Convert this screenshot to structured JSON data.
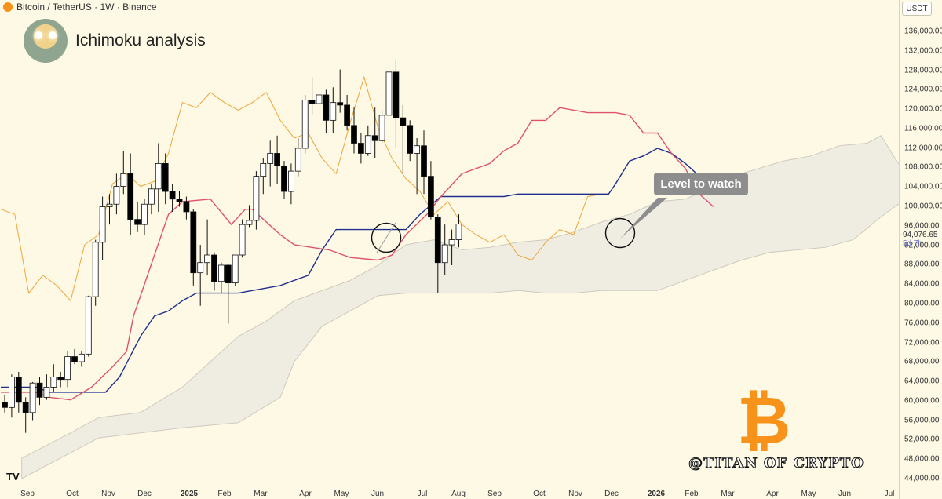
{
  "header": {
    "symbol": "Bitcoin / TetherUS · 1W · Binance"
  },
  "title": "Ichimoku analysis",
  "currency": "USDT",
  "last_price": "94,076.65",
  "countdown": "5d 7h",
  "callout": "Level to watch",
  "watermark": "@TITAN OF CRYPTO",
  "tv_logo": "TV",
  "btc_symbol": "₿",
  "colors": {
    "background": "#fdf9e5",
    "up": "#ffffff",
    "down": "#000000",
    "tenkan": "#e0516a",
    "kijun": "#1f2f8f",
    "chikou": "#f0a43a",
    "cloud": "#efece2",
    "btc": "#f7931a"
  },
  "chart_data": {
    "type": "candlestick",
    "timeframe": "1W",
    "ylim": [
      44000,
      136000
    ],
    "y_ticks": [
      "136,000.00",
      "132,000.00",
      "128,000.00",
      "124,000.00",
      "120,000.00",
      "116,000.00",
      "112,000.00",
      "108,000.00",
      "104,000.00",
      "100,000.00",
      "96,000.00",
      "92,000.00",
      "88,000.00",
      "84,000.00",
      "80,000.00",
      "76,000.00",
      "72,000.00",
      "68,000.00",
      "64,000.00",
      "60,000.00",
      "56,000.00",
      "52,000.00",
      "48,000.00",
      "44,000.00"
    ],
    "x_labels": [
      "Sep",
      "Oct",
      "Nov",
      "Dec",
      "2025",
      "Feb",
      "Mar",
      "Apr",
      "May",
      "Jun",
      "Jul",
      "Aug",
      "Sep",
      "Oct",
      "Nov",
      "Dec",
      "2026",
      "Feb",
      "Mar",
      "Apr",
      "May",
      "Jun",
      "Jul"
    ],
    "candles_ohlc": [
      [
        59000,
        60500,
        57000,
        58000
      ],
      [
        58000,
        64500,
        56000,
        64000
      ],
      [
        64000,
        65000,
        57000,
        59000
      ],
      [
        59000,
        60000,
        53000,
        57000
      ],
      [
        57000,
        63000,
        55500,
        62800
      ],
      [
        62800,
        64000,
        58500,
        60000
      ],
      [
        60000,
        64500,
        59500,
        62000
      ],
      [
        62000,
        66500,
        61000,
        64000
      ],
      [
        64000,
        65000,
        62000,
        63500
      ],
      [
        63500,
        69000,
        62000,
        68000
      ],
      [
        68000,
        69500,
        66500,
        67000
      ],
      [
        67000,
        69000,
        66000,
        68500
      ],
      [
        68500,
        80000,
        68000,
        79800
      ],
      [
        79800,
        91000,
        78000,
        90500
      ],
      [
        90500,
        99500,
        87000,
        97500
      ],
      [
        97500,
        100000,
        94000,
        98000
      ],
      [
        98000,
        104000,
        96000,
        101500
      ],
      [
        101500,
        108500,
        100000,
        104000
      ],
      [
        104000,
        108000,
        92000,
        95000
      ],
      [
        95000,
        98500,
        92500,
        94000
      ],
      [
        94000,
        99000,
        92000,
        98000
      ],
      [
        98000,
        102000,
        96000,
        101000
      ],
      [
        101000,
        110000,
        96500,
        106000
      ],
      [
        106000,
        108000,
        98000,
        100500
      ],
      [
        100500,
        102000,
        96500,
        99000
      ],
      [
        99000,
        100500,
        97500,
        98500
      ],
      [
        98500,
        99500,
        95000,
        96500
      ],
      [
        96500,
        97000,
        82000,
        84500
      ],
      [
        84500,
        90000,
        78000,
        86500
      ],
      [
        86500,
        95000,
        84000,
        88000
      ],
      [
        88000,
        88500,
        81000,
        82800
      ],
      [
        82800,
        86500,
        80500,
        86000
      ],
      [
        86000,
        86200,
        74500,
        82500
      ],
      [
        82500,
        87000,
        82000,
        88000
      ],
      [
        88000,
        95000,
        87500,
        94000
      ],
      [
        94000,
        97800,
        93500,
        94800
      ],
      [
        94800,
        104500,
        93000,
        103500
      ],
      [
        103500,
        107000,
        100000,
        106000
      ],
      [
        106000,
        110500,
        101500,
        108000
      ],
      [
        108000,
        111500,
        102000,
        105500
      ],
      [
        105500,
        106500,
        99000,
        100500
      ],
      [
        100500,
        106000,
        98000,
        104500
      ],
      [
        104500,
        111000,
        103500,
        109000
      ],
      [
        109000,
        119500,
        108000,
        118500
      ],
      [
        118500,
        123000,
        115500,
        117800
      ],
      [
        117800,
        122500,
        113500,
        119500
      ],
      [
        119500,
        120500,
        112000,
        114500
      ],
      [
        114500,
        121000,
        112000,
        118000
      ],
      [
        118000,
        124500,
        116000,
        117500
      ],
      [
        117500,
        119500,
        112500,
        113500
      ],
      [
        113500,
        117000,
        108000,
        110000
      ],
      [
        110000,
        112000,
        106000,
        108000
      ],
      [
        108000,
        113500,
        107500,
        111500
      ],
      [
        111500,
        117000,
        107000,
        110500
      ],
      [
        110500,
        116500,
        110000,
        115500
      ],
      [
        115500,
        126000,
        114000,
        124000
      ],
      [
        124000,
        126500,
        109000,
        115000
      ],
      [
        115000,
        117500,
        104000,
        113500
      ],
      [
        113500,
        114500,
        106500,
        108000
      ],
      [
        108000,
        111000,
        100000,
        109500
      ],
      [
        109500,
        112500,
        100000,
        103500
      ],
      [
        103500,
        106500,
        95000,
        95500
      ],
      [
        95500,
        96000,
        80500,
        86500
      ],
      [
        86500,
        94000,
        84000,
        90000
      ],
      [
        90000,
        93000,
        86000,
        91000
      ],
      [
        91000,
        96000,
        89500,
        94076.65
      ]
    ],
    "series": [
      {
        "name": "Tenkan",
        "values": [
          [
            0,
            61000
          ],
          [
            5,
            61000
          ],
          [
            7,
            60000
          ],
          [
            10,
            59500
          ],
          [
            13,
            62000
          ],
          [
            16,
            66000
          ],
          [
            18,
            69000
          ],
          [
            19,
            76000
          ],
          [
            22,
            88000
          ],
          [
            24,
            96000
          ],
          [
            26,
            98500
          ],
          [
            30,
            99000
          ],
          [
            33,
            94000
          ],
          [
            35,
            97000
          ],
          [
            36,
            97000
          ],
          [
            40,
            92000
          ],
          [
            42,
            90000
          ],
          [
            47,
            89000
          ],
          [
            50,
            87500
          ],
          [
            54,
            87000
          ],
          [
            56,
            88000
          ],
          [
            58,
            92000
          ],
          [
            61,
            96000
          ],
          [
            63,
            99500
          ],
          [
            66,
            104000
          ],
          [
            70,
            106000
          ],
          [
            72,
            108500
          ],
          [
            74,
            110000
          ],
          [
            76,
            114500
          ],
          [
            78,
            114500
          ],
          [
            80,
            117000
          ],
          [
            84,
            116000
          ],
          [
            88,
            116000
          ],
          [
            90,
            115500
          ],
          [
            92,
            112000
          ],
          [
            94,
            112000
          ],
          [
            96,
            108000
          ],
          [
            98,
            105000
          ],
          [
            100,
            100000
          ],
          [
            102,
            97500
          ]
        ]
      },
      {
        "name": "Kijun",
        "values": [
          [
            0,
            62000
          ],
          [
            5,
            62000
          ],
          [
            7,
            61000
          ],
          [
            15,
            61000
          ],
          [
            17,
            64000
          ],
          [
            20,
            72000
          ],
          [
            22,
            76000
          ],
          [
            24,
            77000
          ],
          [
            26,
            79000
          ],
          [
            28,
            80500
          ],
          [
            34,
            80500
          ],
          [
            36,
            81000
          ],
          [
            40,
            82000
          ],
          [
            44,
            84000
          ],
          [
            46,
            89000
          ],
          [
            48,
            93000
          ],
          [
            58,
            93000
          ],
          [
            60,
            96000
          ],
          [
            63,
            99500
          ],
          [
            72,
            99500
          ],
          [
            74,
            100000
          ],
          [
            80,
            100000
          ],
          [
            87,
            100000
          ],
          [
            88,
            102000
          ],
          [
            90,
            106500
          ],
          [
            92,
            107500
          ],
          [
            94,
            109000
          ],
          [
            96,
            108000
          ],
          [
            98,
            106000
          ],
          [
            100,
            103500
          ],
          [
            105,
            103500
          ]
        ]
      },
      {
        "name": "Chikou",
        "values": [
          [
            0,
            97000
          ],
          [
            2,
            96000
          ],
          [
            4,
            80500
          ],
          [
            6,
            84000
          ],
          [
            8,
            82000
          ],
          [
            10,
            79000
          ],
          [
            12,
            90000
          ],
          [
            14,
            92000
          ],
          [
            16,
            102000
          ],
          [
            18,
            104000
          ],
          [
            20,
            101500
          ],
          [
            22,
            102500
          ],
          [
            24,
            108000
          ],
          [
            26,
            118000
          ],
          [
            28,
            117000
          ],
          [
            30,
            120000
          ],
          [
            32,
            118000
          ],
          [
            34,
            116500
          ],
          [
            36,
            118000
          ],
          [
            38,
            120000
          ],
          [
            40,
            114500
          ],
          [
            42,
            111000
          ],
          [
            44,
            112000
          ],
          [
            46,
            107000
          ],
          [
            48,
            104000
          ],
          [
            50,
            114000
          ],
          [
            52,
            123000
          ],
          [
            54,
            113000
          ],
          [
            56,
            107000
          ],
          [
            58,
            103000
          ],
          [
            60,
            100500
          ],
          [
            62,
            96000
          ],
          [
            64,
            98500
          ],
          [
            66,
            94000
          ],
          [
            68,
            92000
          ],
          [
            70,
            90500
          ],
          [
            72,
            92000
          ],
          [
            74,
            88000
          ],
          [
            76,
            87000
          ],
          [
            78,
            90500
          ],
          [
            80,
            93000
          ],
          [
            82,
            92000
          ],
          [
            84,
            99500
          ],
          [
            86,
            100000
          ]
        ]
      },
      {
        "name": "Cloud top",
        "values": [
          [
            3,
            48000
          ],
          [
            10,
            53000
          ],
          [
            14,
            56000
          ],
          [
            20,
            57000
          ],
          [
            26,
            62000
          ],
          [
            30,
            67000
          ],
          [
            34,
            72000
          ],
          [
            38,
            75000
          ],
          [
            42,
            79000
          ],
          [
            46,
            81000
          ],
          [
            50,
            83000
          ],
          [
            54,
            86000
          ],
          [
            56,
            88000
          ],
          [
            58,
            90000
          ],
          [
            62,
            91000
          ],
          [
            66,
            89000
          ],
          [
            70,
            89500
          ],
          [
            74,
            90500
          ],
          [
            78,
            91000
          ],
          [
            82,
            92500
          ],
          [
            86,
            94500
          ],
          [
            90,
            96000
          ],
          [
            94,
            98500
          ],
          [
            98,
            99000
          ],
          [
            102,
            101500
          ],
          [
            106,
            104000
          ],
          [
            112,
            106500
          ],
          [
            116,
            107500
          ],
          [
            120,
            109500
          ],
          [
            124,
            110000
          ],
          [
            126,
            111500
          ],
          [
            128,
            107000
          ],
          [
            130,
            103000
          ],
          [
            134,
            103000
          ],
          [
            136,
            101000
          ]
        ]
      },
      {
        "name": "Cloud bottom",
        "values": [
          [
            3,
            44000
          ],
          [
            14,
            52000
          ],
          [
            26,
            54000
          ],
          [
            34,
            55000
          ],
          [
            40,
            60000
          ],
          [
            42,
            67000
          ],
          [
            46,
            74000
          ],
          [
            50,
            77000
          ],
          [
            54,
            80000
          ],
          [
            58,
            80500
          ],
          [
            70,
            80500
          ],
          [
            74,
            81000
          ],
          [
            78,
            80500
          ],
          [
            82,
            80500
          ],
          [
            86,
            81000
          ],
          [
            90,
            81000
          ],
          [
            94,
            81000
          ],
          [
            98,
            83000
          ],
          [
            102,
            85000
          ],
          [
            106,
            87000
          ],
          [
            110,
            88500
          ],
          [
            114,
            89000
          ],
          [
            118,
            89500
          ],
          [
            122,
            91000
          ],
          [
            126,
            95500
          ],
          [
            130,
            99500
          ],
          [
            136,
            100500
          ]
        ]
      }
    ],
    "annotation": "Level to watch"
  }
}
